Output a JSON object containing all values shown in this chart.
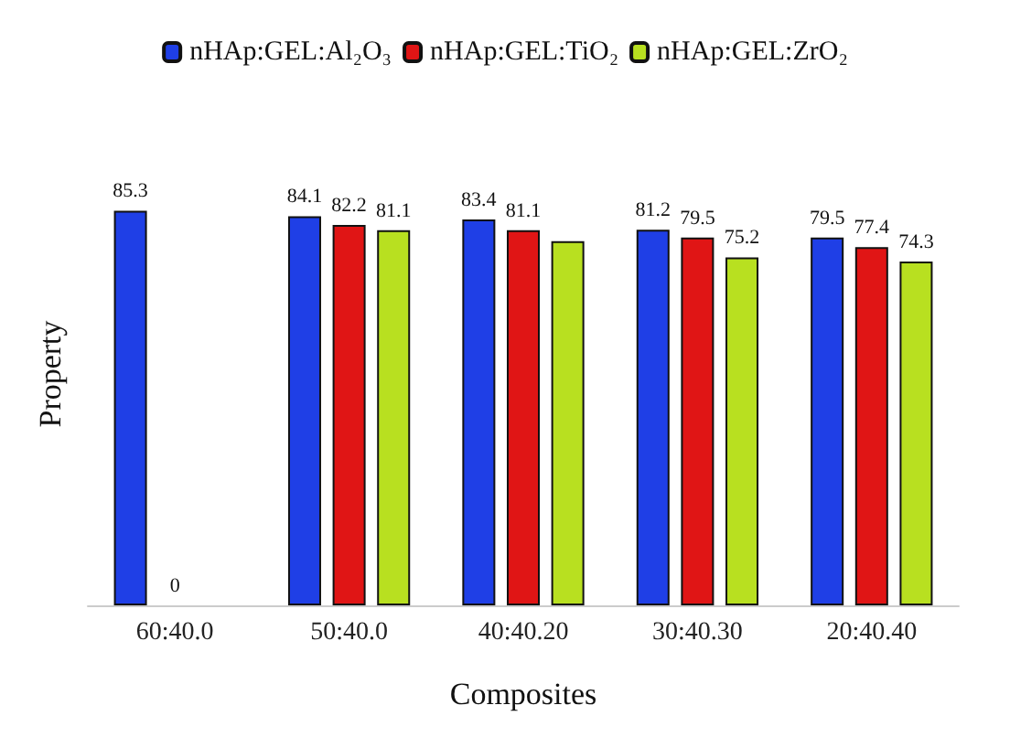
{
  "chart_data": {
    "type": "bar",
    "xlabel": "Composites",
    "ylabel": "Property",
    "categories": [
      "60:40.0",
      "50:40.0",
      "40:40.20",
      "30:40.30",
      "20:40.40"
    ],
    "series": [
      {
        "name": "nHAp:GEL:Al₂O₃",
        "color": "#1f3fe6",
        "values": [
          85.3,
          84.1,
          83.4,
          81.2,
          79.5
        ],
        "value_labels": [
          "85.3",
          "84.1",
          "83.4",
          "81.2",
          "79.5"
        ]
      },
      {
        "name": "nHAp:GEL:TiO₂",
        "color": "#e01515",
        "values": [
          0,
          82.2,
          81.1,
          79.5,
          77.4
        ],
        "value_labels": [
          "0",
          "82.2",
          "81.1",
          "79.5",
          "77.4"
        ]
      },
      {
        "name": "nHAp:GEL:ZrO₂",
        "color": "#b8e020",
        "values": [
          null,
          81.1,
          78.7,
          75.2,
          74.3
        ],
        "value_labels": [
          null,
          "81.1",
          null,
          "75.2",
          "74.3"
        ]
      }
    ],
    "legend": "top",
    "grid": false,
    "tick_labels": "x"
  }
}
